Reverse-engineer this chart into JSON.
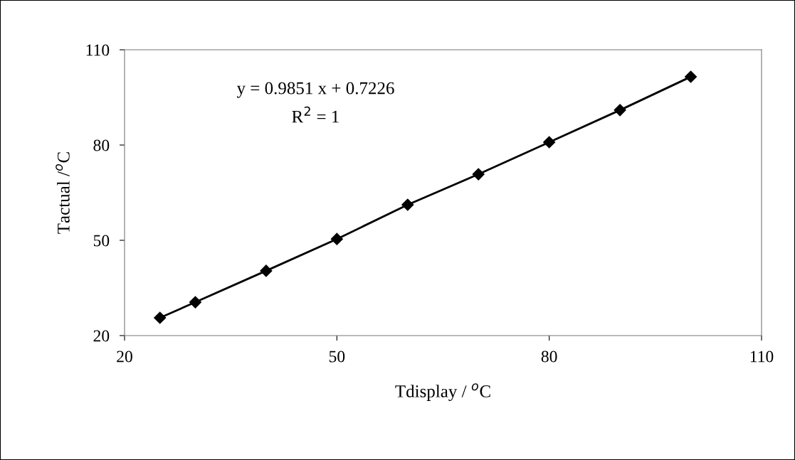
{
  "chart_data": {
    "type": "line",
    "xlabel": "Tdisplay / $^{o}$C",
    "ylabel": "Tactual /$^{o}$C",
    "x": [
      25,
      30,
      40,
      50,
      60,
      70,
      80,
      90,
      100
    ],
    "series": [
      {
        "color": "#000000",
        "values": [
          25.6,
          30.5,
          40.4,
          50.4,
          61.2,
          70.8,
          80.9,
          91.0,
          101.5
        ]
      }
    ],
    "annotations": [
      "y = 0.9851 x + 0.7226",
      "R$^{2}$ = 1"
    ],
    "xlim": [
      20,
      110
    ],
    "ylim": [
      20,
      110
    ],
    "xticks": [
      20,
      50,
      80,
      110
    ],
    "yticks": [
      20,
      50,
      80,
      110
    ],
    "marker": "diamond",
    "line_style": "solid",
    "grid": false
  }
}
